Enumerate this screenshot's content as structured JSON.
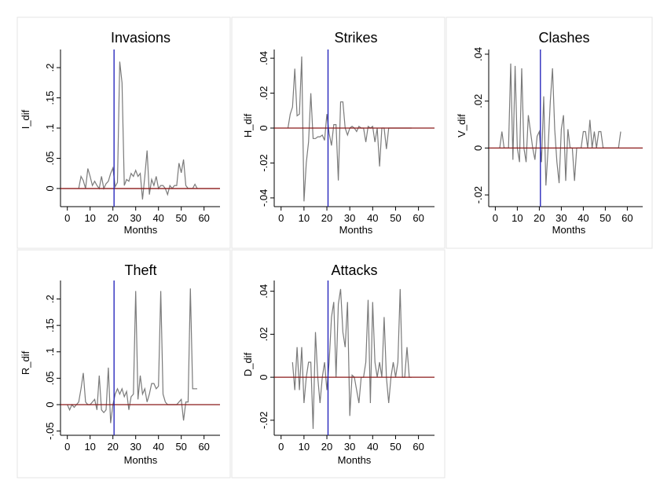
{
  "chart_data": [
    {
      "type": "line",
      "title": "Invasions",
      "xlabel": "Months",
      "ylabel": "I_dif",
      "xlim": [
        -3,
        67
      ],
      "ylim": [
        -0.03,
        0.23
      ],
      "xticks": [
        0,
        10,
        20,
        30,
        40,
        50,
        60
      ],
      "yticks": [
        0,
        0.05,
        0.1,
        0.15,
        0.2
      ],
      "yticklabels": [
        "0",
        ".05",
        ".1",
        ".15",
        ".2"
      ],
      "vline": 20.5,
      "hline": 0,
      "x": [
        5,
        6,
        7,
        8,
        9,
        10,
        11,
        12,
        13,
        14,
        15,
        16,
        17,
        18,
        19,
        20,
        21,
        22,
        23,
        24,
        25,
        26,
        27,
        28,
        29,
        30,
        31,
        32,
        33,
        34,
        35,
        36,
        37,
        38,
        39,
        40,
        41,
        42,
        43,
        44,
        45,
        46,
        47,
        48,
        49,
        50,
        51,
        52,
        53,
        54,
        55,
        56,
        57
      ],
      "values": [
        0,
        0.02,
        0.013,
        0,
        0.033,
        0.02,
        0.005,
        0.012,
        0.005,
        0,
        0.02,
        0,
        0.008,
        0.012,
        0.025,
        0.034,
        0.003,
        0.01,
        0.21,
        0.175,
        0.005,
        0.015,
        0.012,
        0.025,
        0.02,
        0.03,
        0.02,
        0.025,
        -0.018,
        0.02,
        0.063,
        -0.01,
        0.015,
        0.005,
        0.02,
        0,
        0.005,
        0.005,
        0,
        -0.01,
        0.005,
        0,
        0.005,
        0.005,
        0.042,
        0.026,
        0.048,
        0.005,
        0,
        0,
        0,
        0.007,
        0
      ]
    },
    {
      "type": "line",
      "title": "Strikes",
      "xlabel": "Months",
      "ylabel": "H_dif",
      "xlim": [
        -3,
        67
      ],
      "ylim": [
        -0.045,
        0.045
      ],
      "xticks": [
        0,
        10,
        20,
        30,
        40,
        50,
        60
      ],
      "yticks": [
        -0.04,
        -0.02,
        0,
        0.02,
        0.04
      ],
      "yticklabels": [
        "-.04",
        "-.02",
        "0",
        ".02",
        ".04"
      ],
      "vline": 20.5,
      "hline": 0,
      "x": [
        3,
        4,
        5,
        6,
        7,
        8,
        9,
        10,
        11,
        12,
        13,
        14,
        15,
        16,
        17,
        18,
        19,
        20,
        21,
        22,
        23,
        24,
        25,
        26,
        27,
        28,
        29,
        30,
        31,
        32,
        33,
        34,
        35,
        36,
        37,
        38,
        39,
        40,
        41,
        42,
        43,
        44,
        45,
        46,
        47,
        48,
        49,
        50,
        51,
        52,
        53,
        54,
        55,
        56,
        57
      ],
      "values": [
        0,
        0.008,
        0.012,
        0.034,
        0.007,
        0.008,
        0.041,
        -0.042,
        -0.02,
        -0.008,
        0.02,
        -0.006,
        -0.006,
        -0.005,
        -0.005,
        -0.004,
        -0.007,
        0.008,
        -0.003,
        -0.01,
        0.002,
        0.002,
        -0.03,
        0.015,
        0.015,
        0,
        -0.004,
        0,
        0.001,
        0,
        -0.002,
        0.001,
        0,
        0,
        -0.008,
        0.001,
        0,
        0.001,
        -0.008,
        0,
        -0.022,
        0,
        0,
        -0.012,
        0,
        0,
        0,
        0,
        0,
        0,
        0,
        0,
        0,
        0,
        0
      ]
    },
    {
      "type": "line",
      "title": "Clashes",
      "xlabel": "Months",
      "ylabel": "V_dif",
      "xlim": [
        -3,
        67
      ],
      "ylim": [
        -0.025,
        0.042
      ],
      "xticks": [
        0,
        10,
        20,
        30,
        40,
        50,
        60
      ],
      "yticks": [
        -0.02,
        0,
        0.02,
        0.04
      ],
      "yticklabels": [
        "-.02",
        "0",
        ".02",
        ".04"
      ],
      "vline": 20.5,
      "hline": 0,
      "x": [
        2,
        3,
        4,
        5,
        6,
        7,
        8,
        9,
        10,
        11,
        12,
        13,
        14,
        15,
        16,
        17,
        18,
        19,
        20,
        21,
        22,
        23,
        24,
        25,
        26,
        27,
        28,
        29,
        30,
        31,
        32,
        33,
        34,
        35,
        36,
        37,
        38,
        39,
        40,
        41,
        42,
        43,
        44,
        45,
        46,
        47,
        48,
        49,
        50,
        51,
        52,
        53,
        54,
        55,
        56,
        57
      ],
      "values": [
        0,
        0.007,
        0,
        0,
        0,
        0.036,
        -0.005,
        0.035,
        0,
        -0.006,
        0.034,
        0,
        -0.006,
        0.014,
        0.007,
        0,
        -0.005,
        0.005,
        0.007,
        -0.006,
        0.022,
        -0.016,
        0,
        0.02,
        0.034,
        0.008,
        -0.006,
        -0.015,
        0.008,
        0.014,
        -0.014,
        0.008,
        0,
        0,
        -0.014,
        0,
        0,
        0,
        0.007,
        0.007,
        0,
        0.012,
        0,
        0.007,
        0,
        0.007,
        0.007,
        0,
        0,
        0,
        0,
        0,
        0,
        0,
        0,
        0.007
      ]
    },
    {
      "type": "line",
      "title": "Theft",
      "xlabel": "Months",
      "ylabel": "R_dif",
      "xlim": [
        -3,
        67
      ],
      "ylim": [
        -0.058,
        0.235
      ],
      "xticks": [
        0,
        10,
        20,
        30,
        40,
        50,
        60
      ],
      "yticks": [
        -0.05,
        0,
        0.05,
        0.1,
        0.15,
        0.2
      ],
      "yticklabels": [
        "-.05",
        "0",
        ".05",
        ".1",
        ".15",
        ".2"
      ],
      "vline": 20.5,
      "hline": 0,
      "x": [
        0,
        1,
        2,
        3,
        4,
        5,
        6,
        7,
        8,
        9,
        10,
        11,
        12,
        13,
        14,
        15,
        16,
        17,
        18,
        19,
        20,
        21,
        22,
        23,
        24,
        25,
        26,
        27,
        28,
        29,
        30,
        31,
        32,
        33,
        34,
        35,
        36,
        37,
        38,
        39,
        40,
        41,
        42,
        43,
        44,
        45,
        46,
        47,
        48,
        49,
        50,
        51,
        52,
        53,
        54,
        55,
        56,
        57
      ],
      "values": [
        0,
        -0.01,
        0,
        -0.005,
        0,
        0.005,
        0.03,
        0.06,
        0.005,
        0,
        0,
        0.005,
        0.01,
        -0.01,
        0.055,
        -0.01,
        -0.015,
        -0.01,
        0.07,
        -0.035,
        0,
        0.02,
        0.03,
        0.02,
        0.03,
        0.015,
        0.025,
        -0.01,
        0.015,
        0.02,
        0.215,
        0.01,
        0.055,
        0.02,
        0.03,
        0.005,
        0.02,
        0.04,
        0.04,
        0.03,
        0.035,
        0.215,
        0.02,
        0.005,
        0,
        0,
        0,
        0,
        0,
        0.005,
        0.01,
        -0.03,
        0.005,
        0.005,
        0.22,
        0.03,
        0.03,
        0.03
      ]
    },
    {
      "type": "line",
      "title": "Attacks",
      "xlabel": "Months",
      "ylabel": "D_dif",
      "xlim": [
        -3,
        67
      ],
      "ylim": [
        -0.027,
        0.045
      ],
      "xticks": [
        0,
        10,
        20,
        30,
        40,
        50,
        60
      ],
      "yticks": [
        -0.02,
        0,
        0.02,
        0.04
      ],
      "yticklabels": [
        "-.02",
        "0",
        ".02",
        ".04"
      ],
      "vline": 20.5,
      "hline": 0,
      "x": [
        5,
        6,
        7,
        8,
        9,
        10,
        11,
        12,
        13,
        14,
        15,
        16,
        17,
        18,
        19,
        20,
        21,
        22,
        23,
        24,
        25,
        26,
        27,
        28,
        29,
        30,
        31,
        32,
        33,
        34,
        35,
        36,
        37,
        38,
        39,
        40,
        41,
        42,
        43,
        44,
        45,
        46,
        47,
        48,
        49,
        50,
        51,
        52,
        53,
        54,
        55,
        56,
        57
      ],
      "values": [
        0.007,
        -0.006,
        0.014,
        -0.006,
        0.014,
        -0.012,
        0,
        0.007,
        0.007,
        -0.024,
        0.021,
        0,
        -0.012,
        0,
        0.007,
        -0.006,
        0.007,
        0.028,
        0.035,
        0,
        0.034,
        0.041,
        0.021,
        0.014,
        0.035,
        -0.018,
        0.001,
        0,
        -0.006,
        -0.012,
        0,
        0,
        0.007,
        0.036,
        -0.012,
        0.035,
        0.007,
        0,
        0.007,
        0,
        0.028,
        0,
        -0.012,
        0,
        0.007,
        0,
        0.007,
        0.041,
        0,
        0,
        0.014,
        0,
        0
      ]
    }
  ]
}
